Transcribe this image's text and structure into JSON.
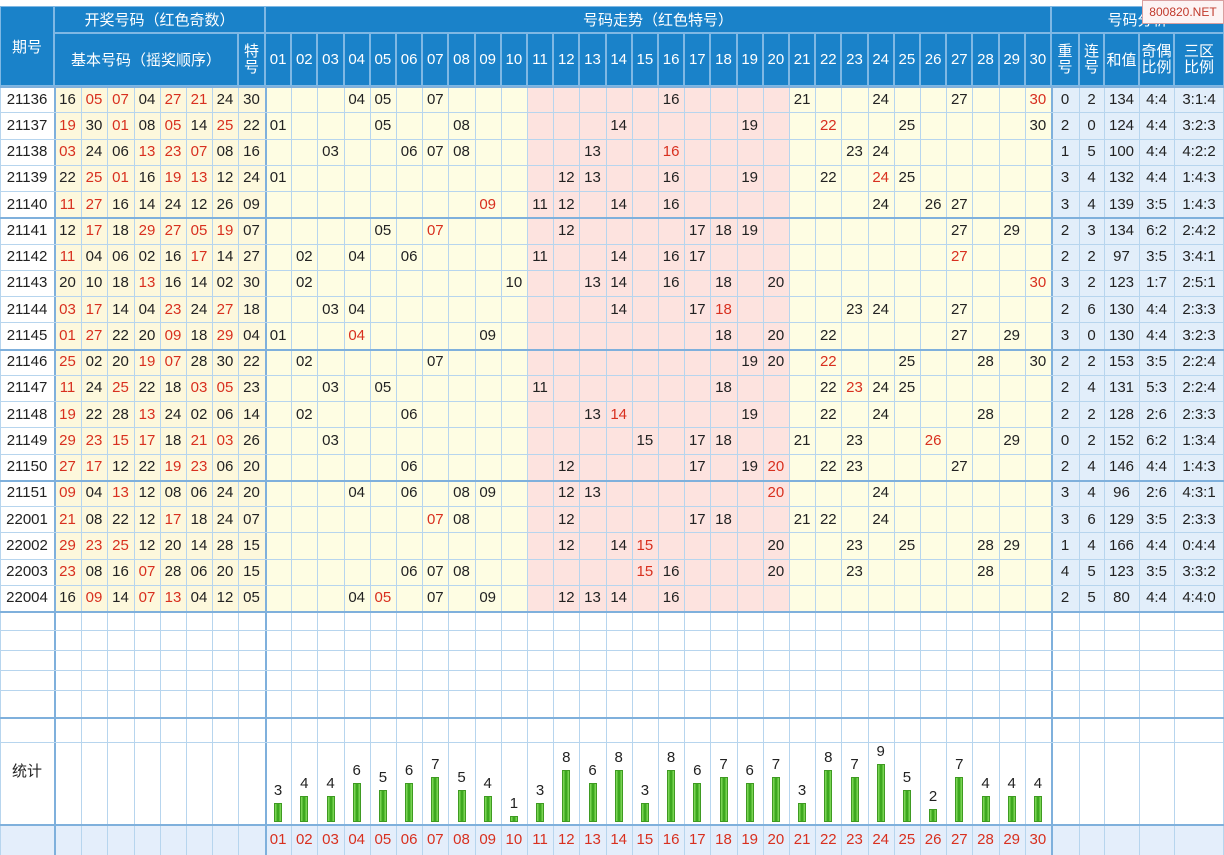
{
  "header": {
    "period": "期号",
    "draw_numbers": "开奖号码（红色奇数）",
    "base_numbers": "基本号码（摇奖顺序）",
    "special": "特号",
    "trend": "号码走势（红色特号）",
    "analysis": "号码分析",
    "repeat": "重号",
    "consecutive": "连号",
    "sum": "和值",
    "odd_even": "奇偶比例",
    "zone": "三区比例"
  },
  "watermark": "800820.NET",
  "numbers": [
    "01",
    "02",
    "03",
    "04",
    "05",
    "06",
    "07",
    "08",
    "09",
    "10",
    "11",
    "12",
    "13",
    "14",
    "15",
    "16",
    "17",
    "18",
    "19",
    "20",
    "21",
    "22",
    "23",
    "24",
    "25",
    "26",
    "27",
    "28",
    "29",
    "30"
  ],
  "rows": [
    {
      "period": "21136",
      "base": [
        "16",
        "05",
        "07",
        "04",
        "27",
        "21",
        "24"
      ],
      "special": "30",
      "trend": [
        "04",
        "05",
        "07",
        "16",
        "21",
        "24",
        "27",
        "30"
      ],
      "repeat": "0",
      "consec": "2",
      "sum": "134",
      "oe": "4:4",
      "zone": "3:1:4"
    },
    {
      "period": "21137",
      "base": [
        "19",
        "30",
        "01",
        "08",
        "05",
        "14",
        "25"
      ],
      "special": "22",
      "trend": [
        "01",
        "05",
        "08",
        "14",
        "19",
        "22",
        "25",
        "30"
      ],
      "repeat": "2",
      "consec": "0",
      "sum": "124",
      "oe": "4:4",
      "zone": "3:2:3"
    },
    {
      "period": "21138",
      "base": [
        "03",
        "24",
        "06",
        "13",
        "23",
        "07",
        "08"
      ],
      "special": "16",
      "trend": [
        "03",
        "06",
        "07",
        "08",
        "13",
        "16",
        "23",
        "24"
      ],
      "repeat": "1",
      "consec": "5",
      "sum": "100",
      "oe": "4:4",
      "zone": "4:2:2"
    },
    {
      "period": "21139",
      "base": [
        "22",
        "25",
        "01",
        "16",
        "19",
        "13",
        "12"
      ],
      "special": "24",
      "trend": [
        "01",
        "12",
        "13",
        "16",
        "19",
        "22",
        "24",
        "25"
      ],
      "repeat": "3",
      "consec": "4",
      "sum": "132",
      "oe": "4:4",
      "zone": "1:4:3"
    },
    {
      "period": "21140",
      "base": [
        "11",
        "27",
        "16",
        "14",
        "24",
        "12",
        "26"
      ],
      "special": "09",
      "trend": [
        "09",
        "11",
        "12",
        "14",
        "16",
        "24",
        "26",
        "27"
      ],
      "repeat": "3",
      "consec": "4",
      "sum": "139",
      "oe": "3:5",
      "zone": "1:4:3"
    },
    {
      "period": "21141",
      "base": [
        "12",
        "17",
        "18",
        "29",
        "27",
        "05",
        "19"
      ],
      "special": "07",
      "trend": [
        "05",
        "07",
        "12",
        "17",
        "18",
        "19",
        "27",
        "29"
      ],
      "repeat": "2",
      "consec": "3",
      "sum": "134",
      "oe": "6:2",
      "zone": "2:4:2"
    },
    {
      "period": "21142",
      "base": [
        "11",
        "04",
        "06",
        "02",
        "16",
        "17",
        "14"
      ],
      "special": "27",
      "trend": [
        "02",
        "04",
        "06",
        "11",
        "14",
        "16",
        "17",
        "27"
      ],
      "repeat": "2",
      "consec": "2",
      "sum": "97",
      "oe": "3:5",
      "zone": "3:4:1"
    },
    {
      "period": "21143",
      "base": [
        "20",
        "10",
        "18",
        "13",
        "16",
        "14",
        "02"
      ],
      "special": "30",
      "trend": [
        "02",
        "10",
        "13",
        "14",
        "16",
        "18",
        "20",
        "30"
      ],
      "repeat": "3",
      "consec": "2",
      "sum": "123",
      "oe": "1:7",
      "zone": "2:5:1"
    },
    {
      "period": "21144",
      "base": [
        "03",
        "17",
        "14",
        "04",
        "23",
        "24",
        "27"
      ],
      "special": "18",
      "trend": [
        "03",
        "04",
        "14",
        "17",
        "18",
        "23",
        "24",
        "27"
      ],
      "repeat": "2",
      "consec": "6",
      "sum": "130",
      "oe": "4:4",
      "zone": "2:3:3"
    },
    {
      "period": "21145",
      "base": [
        "01",
        "27",
        "22",
        "20",
        "09",
        "18",
        "29"
      ],
      "special": "04",
      "trend": [
        "01",
        "04",
        "09",
        "18",
        "20",
        "22",
        "27",
        "29"
      ],
      "repeat": "3",
      "consec": "0",
      "sum": "130",
      "oe": "4:4",
      "zone": "3:2:3"
    },
    {
      "period": "21146",
      "base": [
        "25",
        "02",
        "20",
        "19",
        "07",
        "28",
        "30"
      ],
      "special": "22",
      "trend": [
        "02",
        "07",
        "19",
        "20",
        "22",
        "25",
        "28",
        "30"
      ],
      "repeat": "2",
      "consec": "2",
      "sum": "153",
      "oe": "3:5",
      "zone": "2:2:4"
    },
    {
      "period": "21147",
      "base": [
        "11",
        "24",
        "25",
        "22",
        "18",
        "03",
        "05"
      ],
      "special": "23",
      "trend": [
        "03",
        "05",
        "11",
        "18",
        "22",
        "23",
        "24",
        "25"
      ],
      "repeat": "2",
      "consec": "4",
      "sum": "131",
      "oe": "5:3",
      "zone": "2:2:4"
    },
    {
      "period": "21148",
      "base": [
        "19",
        "22",
        "28",
        "13",
        "24",
        "02",
        "06"
      ],
      "special": "14",
      "trend": [
        "02",
        "06",
        "13",
        "14",
        "19",
        "22",
        "24",
        "28"
      ],
      "repeat": "2",
      "consec": "2",
      "sum": "128",
      "oe": "2:6",
      "zone": "2:3:3"
    },
    {
      "period": "21149",
      "base": [
        "29",
        "23",
        "15",
        "17",
        "18",
        "21",
        "03"
      ],
      "special": "26",
      "trend": [
        "03",
        "15",
        "17",
        "18",
        "21",
        "23",
        "26",
        "29"
      ],
      "repeat": "0",
      "consec": "2",
      "sum": "152",
      "oe": "6:2",
      "zone": "1:3:4"
    },
    {
      "period": "21150",
      "base": [
        "27",
        "17",
        "12",
        "22",
        "19",
        "23",
        "06"
      ],
      "special": "20",
      "trend": [
        "06",
        "12",
        "17",
        "19",
        "20",
        "22",
        "23",
        "27"
      ],
      "repeat": "2",
      "consec": "4",
      "sum": "146",
      "oe": "4:4",
      "zone": "1:4:3"
    },
    {
      "period": "21151",
      "base": [
        "09",
        "04",
        "13",
        "12",
        "08",
        "06",
        "24"
      ],
      "special": "20",
      "trend": [
        "04",
        "06",
        "08",
        "09",
        "12",
        "13",
        "20",
        "24"
      ],
      "repeat": "3",
      "consec": "4",
      "sum": "96",
      "oe": "2:6",
      "zone": "4:3:1"
    },
    {
      "period": "22001",
      "base": [
        "21",
        "08",
        "22",
        "12",
        "17",
        "18",
        "24"
      ],
      "special": "07",
      "trend": [
        "07",
        "08",
        "12",
        "17",
        "18",
        "21",
        "22",
        "24"
      ],
      "repeat": "3",
      "consec": "6",
      "sum": "129",
      "oe": "3:5",
      "zone": "2:3:3"
    },
    {
      "period": "22002",
      "base": [
        "29",
        "23",
        "25",
        "12",
        "20",
        "14",
        "28"
      ],
      "special": "15",
      "trend": [
        "12",
        "14",
        "15",
        "20",
        "23",
        "25",
        "28",
        "29"
      ],
      "repeat": "1",
      "consec": "4",
      "sum": "166",
      "oe": "4:4",
      "zone": "0:4:4"
    },
    {
      "period": "22003",
      "base": [
        "23",
        "08",
        "16",
        "07",
        "28",
        "06",
        "20"
      ],
      "special": "15",
      "trend": [
        "06",
        "07",
        "08",
        "15",
        "16",
        "20",
        "23",
        "28"
      ],
      "repeat": "4",
      "consec": "5",
      "sum": "123",
      "oe": "3:5",
      "zone": "3:3:2"
    },
    {
      "period": "22004",
      "base": [
        "16",
        "09",
        "14",
        "07",
        "13",
        "04",
        "12"
      ],
      "special": "05",
      "trend": [
        "04",
        "05",
        "07",
        "09",
        "12",
        "13",
        "14",
        "16"
      ],
      "repeat": "2",
      "consec": "5",
      "sum": "80",
      "oe": "4:4",
      "zone": "4:4:0"
    }
  ],
  "stats": {
    "label": "统计",
    "counts": [
      "3",
      "4",
      "4",
      "6",
      "5",
      "6",
      "7",
      "5",
      "4",
      "1",
      "3",
      "8",
      "6",
      "8",
      "3",
      "8",
      "6",
      "7",
      "6",
      "7",
      "3",
      "8",
      "7",
      "9",
      "5",
      "2",
      "7",
      "4",
      "4",
      "4"
    ]
  }
}
